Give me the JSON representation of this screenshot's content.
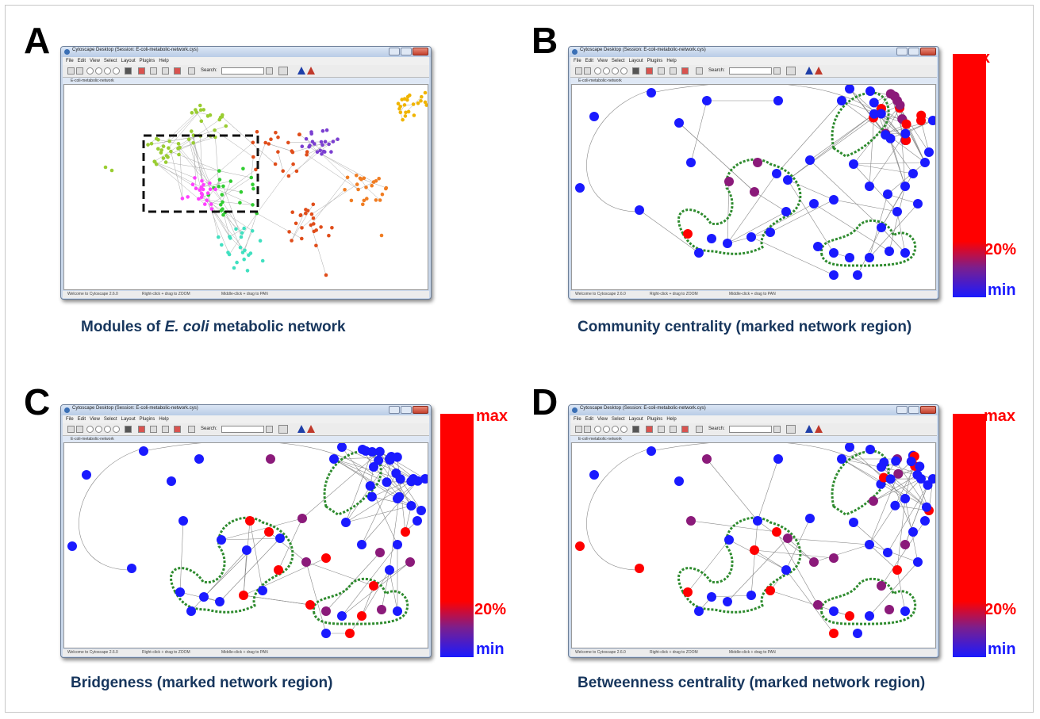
{
  "panels": [
    {
      "letter": "A",
      "caption_pre": "Modules of ",
      "caption_em": "E. coli",
      "caption_post": " metabolic network"
    },
    {
      "letter": "B",
      "caption": "Community centrality (marked network region)"
    },
    {
      "letter": "C",
      "caption": "Bridgeness (marked network region)"
    },
    {
      "letter": "D",
      "caption": "Betweenness centrality (marked network region)"
    }
  ],
  "window": {
    "title": "Cytoscape Desktop (Session: E-coli-metabolic-network.cys)",
    "menus": [
      "File",
      "Edit",
      "View",
      "Select",
      "Layout",
      "Plugins",
      "Help"
    ],
    "search_label": "Search:",
    "network_title": "E-coli-metabolic-network",
    "status": [
      "Welcome to Cytoscape 2.6.0",
      "Right-click + drag to ZOOM",
      "Middle-click + drag to PAN"
    ]
  },
  "colorbar": {
    "max": "max",
    "mid": "20%",
    "min": "min",
    "colors": [
      "#ff0000",
      "#7a1f8f",
      "#1a1aff"
    ]
  },
  "colors": {
    "red": "#ff0000",
    "purple": "#8b1a7a",
    "blue": "#1a1aff",
    "caption": "#17365d",
    "module_green": "#2e8b2e"
  }
}
